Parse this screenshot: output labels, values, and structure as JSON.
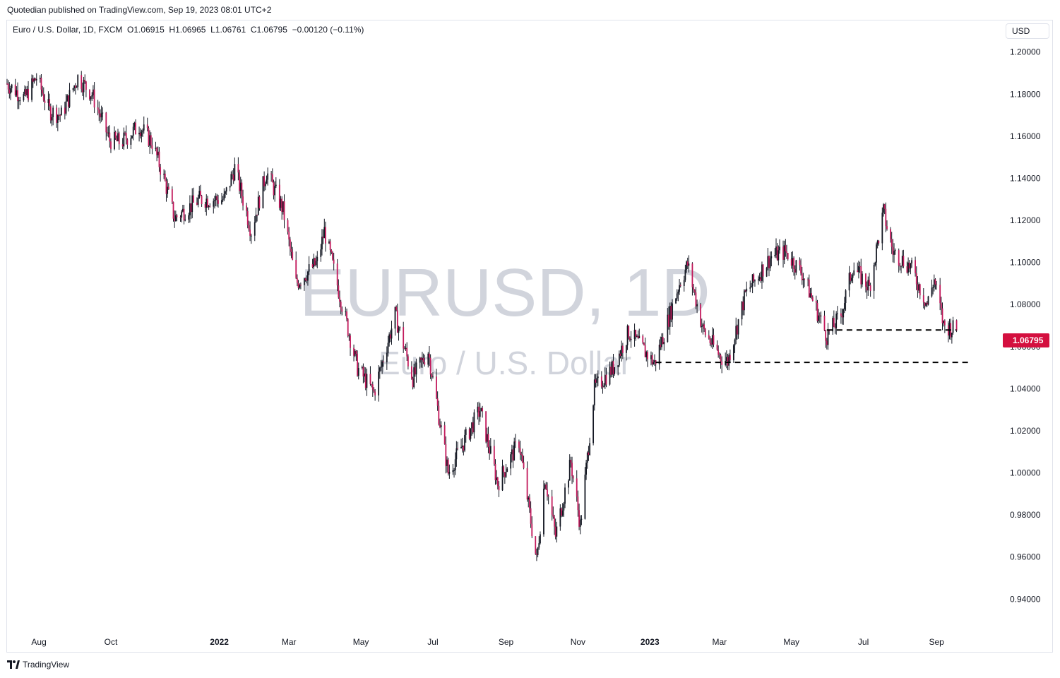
{
  "header": {
    "publish_line": "Quotedian published on TradingView.com, Sep 19, 2023 08:01 UTC+2"
  },
  "legend": {
    "symbol": "Euro / U.S. Dollar, 1D, FXCM",
    "ohlc": "O1.06915  H1.06965  L1.06761  C1.06795  −0.00120 (−0.11%)"
  },
  "currency_label": "USD",
  "watermark": {
    "symbol": "EURUSD, 1D",
    "description": "Euro / U.S. Dollar"
  },
  "footer": {
    "brand": "TradingView"
  },
  "colors": {
    "up": "#131722",
    "down": "#c2185b",
    "last_price_bg": "#d40f3f",
    "watermark": "#d1d4dc"
  },
  "chart_data": {
    "type": "candlestick",
    "title": "Euro / U.S. Dollar, 1D, FXCM",
    "last_price_label": "1.06795",
    "yticks": [
      "1.20000",
      "1.18000",
      "1.16000",
      "1.14000",
      "1.12000",
      "1.10000",
      "1.08000",
      "1.06000",
      "1.04000",
      "1.02000",
      "1.00000",
      "0.98000",
      "0.96000",
      "0.94000"
    ],
    "xticks": [
      {
        "label": "Aug",
        "date": "2021-08-01",
        "bold": false
      },
      {
        "label": "Oct",
        "date": "2021-10-01",
        "bold": false
      },
      {
        "label": "2022",
        "date": "2022-01-01",
        "bold": true
      },
      {
        "label": "Mar",
        "date": "2022-03-01",
        "bold": false
      },
      {
        "label": "May",
        "date": "2022-05-01",
        "bold": false
      },
      {
        "label": "Jul",
        "date": "2022-07-01",
        "bold": false
      },
      {
        "label": "Sep",
        "date": "2022-09-01",
        "bold": false
      },
      {
        "label": "Nov",
        "date": "2022-11-01",
        "bold": false
      },
      {
        "label": "2023",
        "date": "2023-01-01",
        "bold": true
      },
      {
        "label": "Mar",
        "date": "2023-03-01",
        "bold": false
      },
      {
        "label": "May",
        "date": "2023-05-01",
        "bold": false
      },
      {
        "label": "Jul",
        "date": "2023-07-01",
        "bold": false
      },
      {
        "label": "Sep",
        "date": "2023-09-01",
        "bold": false
      }
    ],
    "ylim": [
      0.925,
      1.215
    ],
    "xlim": [
      "2021-07-05",
      "2023-10-20"
    ],
    "price_path": [
      [
        "2021-07-05",
        1.185
      ],
      [
        "2021-07-20",
        1.178
      ],
      [
        "2021-07-30",
        1.188
      ],
      [
        "2021-08-10",
        1.172
      ],
      [
        "2021-08-20",
        1.17
      ],
      [
        "2021-09-03",
        1.188
      ],
      [
        "2021-09-15",
        1.18
      ],
      [
        "2021-09-30",
        1.158
      ],
      [
        "2021-10-10",
        1.157
      ],
      [
        "2021-10-25",
        1.165
      ],
      [
        "2021-11-05",
        1.157
      ],
      [
        "2021-11-15",
        1.14
      ],
      [
        "2021-11-24",
        1.121
      ],
      [
        "2021-12-15",
        1.13
      ],
      [
        "2022-01-05",
        1.13
      ],
      [
        "2022-01-14",
        1.145
      ],
      [
        "2022-01-28",
        1.115
      ],
      [
        "2022-02-10",
        1.143
      ],
      [
        "2022-02-24",
        1.125
      ],
      [
        "2022-03-07",
        1.09
      ],
      [
        "2022-03-25",
        1.1
      ],
      [
        "2022-03-31",
        1.115
      ],
      [
        "2022-04-15",
        1.08
      ],
      [
        "2022-04-28",
        1.05
      ],
      [
        "2022-05-12",
        1.038
      ],
      [
        "2022-05-30",
        1.075
      ],
      [
        "2022-06-14",
        1.045
      ],
      [
        "2022-06-27",
        1.058
      ],
      [
        "2022-07-14",
        1.0
      ],
      [
        "2022-08-10",
        1.03
      ],
      [
        "2022-08-25",
        0.995
      ],
      [
        "2022-09-12",
        1.015
      ],
      [
        "2022-09-27",
        0.958
      ],
      [
        "2022-10-04",
        0.998
      ],
      [
        "2022-10-13",
        0.97
      ],
      [
        "2022-10-26",
        1.005
      ],
      [
        "2022-11-03",
        0.975
      ],
      [
        "2022-11-15",
        1.04
      ],
      [
        "2022-12-01",
        1.05
      ],
      [
        "2022-12-14",
        1.067
      ],
      [
        "2023-01-05",
        1.052
      ],
      [
        "2023-01-26",
        1.09
      ],
      [
        "2023-02-02",
        1.099
      ],
      [
        "2023-02-15",
        1.068
      ],
      [
        "2023-03-02",
        1.055
      ],
      [
        "2023-03-08",
        1.053
      ],
      [
        "2023-03-23",
        1.085
      ],
      [
        "2023-04-14",
        1.103
      ],
      [
        "2023-04-26",
        1.105
      ],
      [
        "2023-05-10",
        1.095
      ],
      [
        "2023-05-31",
        1.065
      ],
      [
        "2023-06-12",
        1.075
      ],
      [
        "2023-06-22",
        1.098
      ],
      [
        "2023-07-06",
        1.088
      ],
      [
        "2023-07-18",
        1.124
      ],
      [
        "2023-07-26",
        1.105
      ],
      [
        "2023-08-10",
        1.098
      ],
      [
        "2023-08-24",
        1.08
      ],
      [
        "2023-08-30",
        1.092
      ],
      [
        "2023-09-07",
        1.07
      ],
      [
        "2023-09-18",
        1.068
      ]
    ],
    "annotations": [
      {
        "type": "dashed_hline",
        "y": 1.0679,
        "from": "2023-05-31",
        "to": "2023-09-18"
      },
      {
        "type": "dashed_hline",
        "y": 1.0525,
        "from": "2023-01-06",
        "to": "2023-09-28"
      }
    ]
  }
}
